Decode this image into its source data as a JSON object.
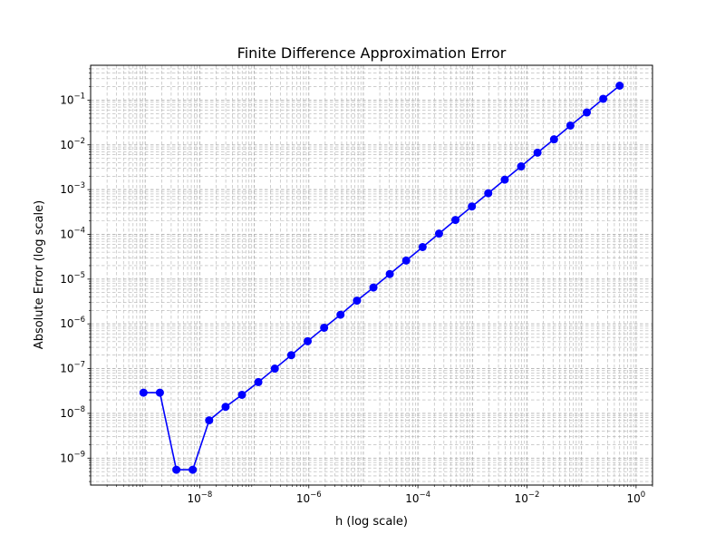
{
  "chart_data": {
    "type": "line",
    "title": "Finite Difference Approximation Error",
    "xlabel": "h (log scale)",
    "ylabel": "Absolute Error (log scale)",
    "x_scale": "log",
    "y_scale": "log",
    "xlim": [
      1e-10,
      2.0
    ],
    "ylim": [
      2.5e-10,
      0.6
    ],
    "grid": true,
    "x_ticks": [
      {
        "value": 1e-08,
        "base": "10",
        "exp": "−8"
      },
      {
        "value": 1e-06,
        "base": "10",
        "exp": "−6"
      },
      {
        "value": 0.0001,
        "base": "10",
        "exp": "−4"
      },
      {
        "value": 0.01,
        "base": "10",
        "exp": "−2"
      },
      {
        "value": 1,
        "base": "10",
        "exp": "0"
      }
    ],
    "y_ticks": [
      {
        "value": 1e-09,
        "base": "10",
        "exp": "−9"
      },
      {
        "value": 1e-08,
        "base": "10",
        "exp": "−8"
      },
      {
        "value": 1e-07,
        "base": "10",
        "exp": "−7"
      },
      {
        "value": 1e-06,
        "base": "10",
        "exp": "−6"
      },
      {
        "value": 1e-05,
        "base": "10",
        "exp": "−5"
      },
      {
        "value": 0.0001,
        "base": "10",
        "exp": "−4"
      },
      {
        "value": 0.001,
        "base": "10",
        "exp": "−3"
      },
      {
        "value": 0.01,
        "base": "10",
        "exp": "−2"
      },
      {
        "value": 0.1,
        "base": "10",
        "exp": "−1"
      }
    ],
    "series": [
      {
        "color": "#0000ff",
        "marker": "circle",
        "x": [
          9.31e-10,
          1.86e-09,
          3.73e-09,
          7.45e-09,
          1.49e-08,
          2.98e-08,
          5.96e-08,
          1.19e-07,
          2.38e-07,
          4.77e-07,
          9.54e-07,
          1.91e-06,
          3.81e-06,
          7.63e-06,
          1.53e-05,
          3.05e-05,
          6.1e-05,
          0.000122,
          0.000244,
          0.000488,
          0.000977,
          0.00195,
          0.00391,
          0.00781,
          0.0156,
          0.0313,
          0.0625,
          0.125,
          0.25,
          0.5
        ],
        "y": [
          2.9e-08,
          2.9e-08,
          5.5e-10,
          5.5e-10,
          7e-09,
          1.4e-08,
          2.6e-08,
          5e-08,
          1e-07,
          2e-07,
          4.1e-07,
          8.2e-07,
          1.6e-06,
          3.3e-06,
          6.5e-06,
          1.3e-05,
          2.6e-05,
          5.2e-05,
          0.000104,
          0.00021,
          0.00042,
          0.00083,
          0.00167,
          0.0033,
          0.0067,
          0.0133,
          0.027,
          0.053,
          0.107,
          0.21
        ]
      }
    ]
  }
}
